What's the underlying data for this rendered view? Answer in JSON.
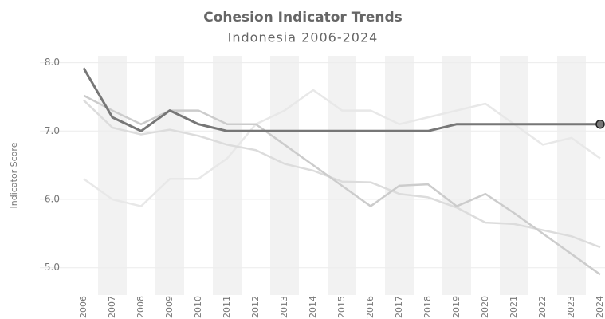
{
  "chart_data": {
    "type": "line",
    "title": "Cohesion Indicator Trends",
    "subtitle": "Indonesia 2006-2024",
    "y_label": "Indicator Score",
    "categories": [
      "2006",
      "2007",
      "2008",
      "2009",
      "2010",
      "2011",
      "2012",
      "2013",
      "2014",
      "2015",
      "2016",
      "2017",
      "2018",
      "2019",
      "2020",
      "2021",
      "2022",
      "2023",
      "2024"
    ],
    "series": [
      {
        "color": "#e8e8e8",
        "values": [
          6.3,
          6.0,
          5.9,
          6.3,
          6.3,
          6.6,
          7.1,
          7.3,
          7.6,
          7.3,
          7.3,
          7.1,
          7.2,
          7.3,
          7.4,
          7.1,
          6.8,
          6.9,
          6.6
        ]
      },
      {
        "color": "#dcdcdc",
        "values": [
          7.45,
          7.05,
          6.95,
          7.02,
          6.93,
          6.8,
          6.72,
          6.52,
          6.42,
          6.26,
          6.25,
          6.08,
          6.03,
          5.88,
          5.66,
          5.64,
          5.55,
          5.46,
          5.3
        ]
      },
      {
        "color": "#cccccc",
        "values": [
          7.52,
          7.3,
          7.1,
          7.3,
          7.3,
          7.1,
          7.1,
          6.8,
          6.5,
          6.2,
          5.9,
          6.2,
          6.22,
          5.9,
          6.08,
          5.8,
          5.5,
          5.2,
          4.9
        ]
      },
      {
        "color": "#777777",
        "values": [
          7.92,
          7.2,
          7.0,
          7.3,
          7.1,
          7.0,
          7.0,
          7.0,
          7.0,
          7.0,
          7.0,
          7.0,
          7.0,
          7.1,
          7.1,
          7.1,
          7.1,
          7.1,
          7.1
        ]
      }
    ],
    "ylim": [
      4.6,
      8.1
    ],
    "yticks": [
      {
        "value": 5,
        "label": "5.0"
      },
      {
        "value": 6,
        "label": "6.0"
      },
      {
        "value": 7,
        "label": "7.0"
      },
      {
        "value": 8,
        "label": "8.0"
      }
    ],
    "grid": true
  }
}
